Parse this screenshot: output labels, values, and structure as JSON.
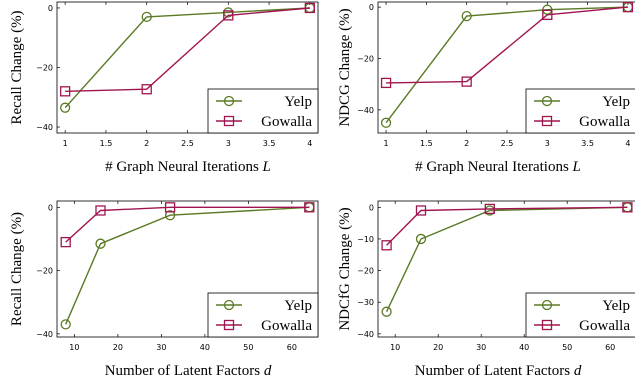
{
  "colors": {
    "yelp": "#5a7a25",
    "gowalla": "#a01550",
    "grid": "#b0b0b0"
  },
  "chart_data": [
    {
      "id": "c1",
      "type": "line",
      "xlabel": "# Graph Neural Iterations L",
      "ylabel": "Recall Change (%)",
      "xlim": [
        0.9,
        4.1
      ],
      "ylim": [
        -42,
        2
      ],
      "xticks": [
        1,
        1.5,
        2,
        2.5,
        3,
        3.5,
        4
      ],
      "xtick_labels": [
        "1",
        "1.5",
        "2",
        "2.5",
        "3",
        "3.5",
        "4"
      ],
      "yticks": [
        0,
        -20,
        -40
      ],
      "ytick_labels": [
        "0",
        "−20",
        "−40"
      ],
      "x": [
        1,
        2,
        3,
        4
      ],
      "series": [
        {
          "name": "Yelp",
          "values": [
            -33.5,
            -3,
            -1.5,
            0
          ]
        },
        {
          "name": "Gowalla",
          "values": [
            -28,
            -27.3,
            -2.5,
            0
          ]
        }
      ],
      "legend": "bottom-right"
    },
    {
      "id": "c2",
      "type": "line",
      "xlabel": "# Graph Neural Iterations L",
      "ylabel": "NDCG Change (%)",
      "xlim": [
        0.9,
        4.1
      ],
      "ylim": [
        -49,
        2
      ],
      "xticks": [
        1,
        1.5,
        2,
        2.5,
        3,
        3.5,
        4
      ],
      "xtick_labels": [
        "1",
        "1.5",
        "2",
        "2.5",
        "3",
        "3.5",
        "4"
      ],
      "yticks": [
        0,
        -20,
        -40
      ],
      "ytick_labels": [
        "0",
        "−20",
        "−40"
      ],
      "x": [
        1,
        2,
        3,
        4
      ],
      "series": [
        {
          "name": "Yelp",
          "values": [
            -45,
            -3.5,
            -1,
            0
          ]
        },
        {
          "name": "Gowalla",
          "values": [
            -29.5,
            -29,
            -3,
            0
          ]
        }
      ],
      "legend": "bottom-right"
    },
    {
      "id": "c3",
      "type": "line",
      "xlabel": "Number of Latent Factors d",
      "ylabel": "Recall Change (%)",
      "xlim": [
        6,
        66
      ],
      "ylim": [
        -41,
        2
      ],
      "xticks": [
        10,
        20,
        30,
        40,
        50,
        60
      ],
      "xtick_labels": [
        "10",
        "20",
        "30",
        "40",
        "50",
        "60"
      ],
      "yticks": [
        0,
        -20,
        -40
      ],
      "ytick_labels": [
        "0",
        "−20",
        "−40"
      ],
      "x": [
        8,
        16,
        32,
        64
      ],
      "series": [
        {
          "name": "Yelp",
          "values": [
            -37,
            -11.5,
            -2.5,
            0
          ]
        },
        {
          "name": "Gowalla",
          "values": [
            -11,
            -1,
            0,
            0
          ]
        }
      ],
      "legend": "bottom-right"
    },
    {
      "id": "c4",
      "type": "line",
      "xlabel": "Number of Latent Factors d",
      "ylabel": "NDCfG Change (%)",
      "xlim": [
        6,
        66
      ],
      "ylim": [
        -41,
        2
      ],
      "xticks": [
        10,
        20,
        30,
        40,
        50,
        60
      ],
      "xtick_labels": [
        "10",
        "20",
        "30",
        "40",
        "50",
        "60"
      ],
      "yticks": [
        0,
        -10,
        -20,
        -30,
        -40
      ],
      "ytick_labels": [
        "0",
        "−10",
        "−20",
        "−30",
        "−40"
      ],
      "x": [
        8,
        16,
        32,
        64
      ],
      "series": [
        {
          "name": "Yelp",
          "values": [
            -33,
            -10,
            -1,
            0
          ]
        },
        {
          "name": "Gowalla",
          "values": [
            -12,
            -1,
            -0.5,
            0
          ]
        }
      ],
      "legend": "bottom-right"
    }
  ]
}
